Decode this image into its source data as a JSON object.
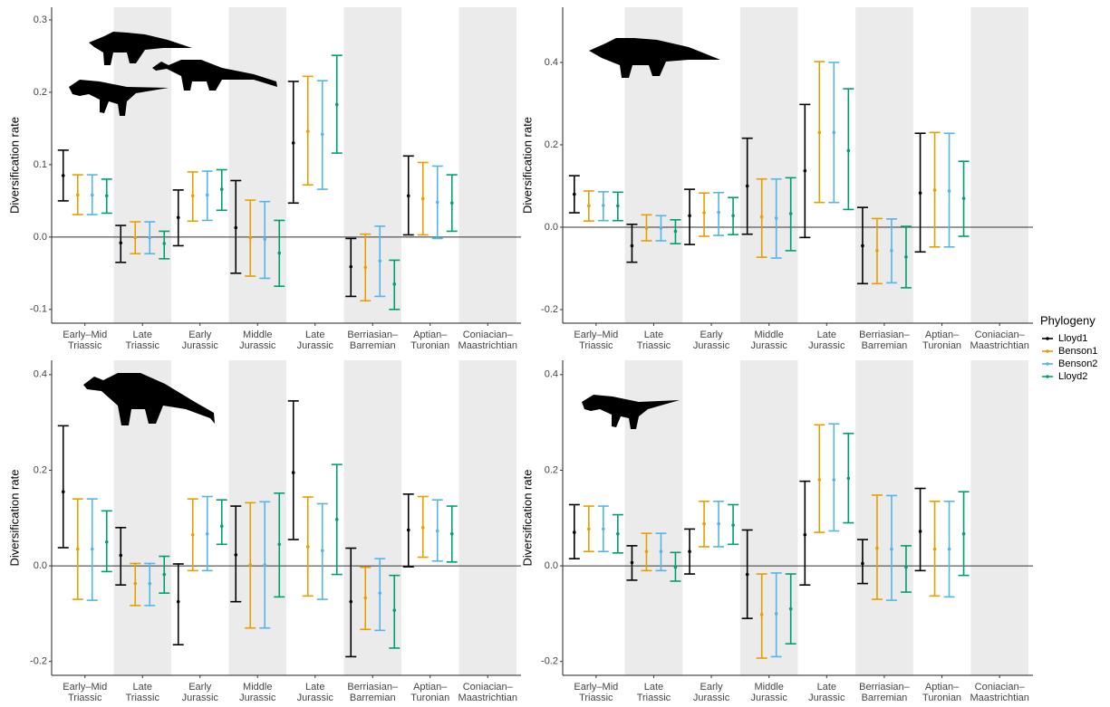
{
  "chart_data": [
    {
      "type": "errorbar",
      "y_label": "Diversification rate",
      "categories": [
        "Early–Mid Triassic",
        "Late Triassic",
        "Early Jurassic",
        "Middle Jurassic",
        "Late Jurassic",
        "Berriasian– Barremian",
        "Aptian– Turonian",
        "Coniacian– Maastrichtian"
      ],
      "ylim": [
        -0.119,
        0.3175
      ],
      "yticks": [
        -0.1,
        {
          "value": 0,
          "label": "0.0"
        },
        0.1,
        0.2,
        0.3
      ],
      "hline": 0,
      "legend_title": "Phylogeny",
      "series": [
        {
          "name": "Lloyd1",
          "color": "#000000",
          "values": [
            0.085,
            -0.008,
            0.027,
            0.013,
            0.13,
            -0.041,
            0.057,
            null
          ],
          "lower": [
            0.05,
            -0.035,
            -0.012,
            -0.05,
            0.047,
            -0.082,
            0.003,
            null
          ],
          "upper": [
            0.12,
            0.016,
            0.065,
            0.078,
            0.215,
            -0.002,
            0.112,
            null
          ]
        },
        {
          "name": "Benson1",
          "color": "#E69F00",
          "values": [
            0.058,
            -0.001,
            0.057,
            -0.001,
            0.146,
            -0.042,
            0.053,
            null
          ],
          "lower": [
            0.031,
            -0.023,
            0.022,
            -0.054,
            0.072,
            -0.088,
            0.003,
            null
          ],
          "upper": [
            0.086,
            0.021,
            0.09,
            0.051,
            0.222,
            0.004,
            0.103,
            null
          ]
        },
        {
          "name": "Benson2",
          "color": "#56B4E9",
          "values": [
            0.058,
            -0.001,
            0.058,
            -0.003,
            0.142,
            -0.033,
            0.048,
            null
          ],
          "lower": [
            0.031,
            -0.023,
            0.023,
            -0.057,
            0.066,
            -0.082,
            -0.002,
            null
          ],
          "upper": [
            0.086,
            0.021,
            0.091,
            0.049,
            0.216,
            0.015,
            0.098,
            null
          ]
        },
        {
          "name": "Lloyd2",
          "color": "#009E73",
          "values": [
            0.057,
            -0.009,
            0.066,
            -0.022,
            0.183,
            -0.065,
            0.047,
            null
          ],
          "lower": [
            0.033,
            -0.03,
            0.037,
            -0.068,
            0.116,
            -0.1,
            0.008,
            null
          ],
          "upper": [
            0.08,
            0.008,
            0.093,
            0.023,
            0.251,
            -0.032,
            0.086,
            null
          ]
        }
      ]
    },
    {
      "type": "errorbar",
      "y_label": "Diversification rate",
      "categories": [
        "Early–Mid Triassic",
        "Late Triassic",
        "Early Jurassic",
        "Middle Jurassic",
        "Late Jurassic",
        "Berriasian– Barremian",
        "Aptian– Turonian",
        "Coniacian– Maastrichtian"
      ],
      "ylim": [
        -0.233,
        0.534
      ],
      "yticks": [
        -0.2,
        {
          "value": 0,
          "label": "0.0"
        },
        0.2,
        0.4
      ],
      "hline": 0,
      "series": [
        {
          "name": "Lloyd1",
          "color": "#000000",
          "values": [
            0.08,
            -0.045,
            0.028,
            0.1,
            0.137,
            -0.045,
            0.083,
            null
          ],
          "lower": [
            0.035,
            -0.085,
            -0.042,
            -0.017,
            -0.025,
            -0.137,
            -0.06,
            null
          ],
          "upper": [
            0.125,
            0.007,
            0.092,
            0.216,
            0.298,
            0.048,
            0.228,
            null
          ]
        },
        {
          "name": "Benson1",
          "color": "#E69F00",
          "values": [
            0.052,
            -0.002,
            0.035,
            0.025,
            0.23,
            -0.057,
            0.09,
            null
          ],
          "lower": [
            0.015,
            -0.033,
            -0.022,
            -0.073,
            0.06,
            -0.137,
            -0.048,
            null
          ],
          "upper": [
            0.088,
            0.03,
            0.083,
            0.117,
            0.402,
            0.021,
            0.23,
            null
          ]
        },
        {
          "name": "Benson2",
          "color": "#56B4E9",
          "values": [
            0.053,
            -0.002,
            0.036,
            0.022,
            0.23,
            -0.057,
            0.088,
            null
          ],
          "lower": [
            0.016,
            -0.033,
            -0.02,
            -0.075,
            0.06,
            -0.135,
            -0.048,
            null
          ],
          "upper": [
            0.086,
            0.028,
            0.084,
            0.117,
            0.4,
            0.02,
            0.228,
            null
          ]
        },
        {
          "name": "Lloyd2",
          "color": "#009E73",
          "values": [
            0.052,
            -0.01,
            0.028,
            0.033,
            0.186,
            -0.072,
            0.07,
            null
          ],
          "lower": [
            0.016,
            -0.04,
            -0.018,
            -0.057,
            0.043,
            -0.147,
            -0.022,
            null
          ],
          "upper": [
            0.085,
            0.018,
            0.072,
            0.12,
            0.336,
            0.002,
            0.16,
            null
          ]
        }
      ]
    },
    {
      "type": "errorbar",
      "y_label": "Diversification rate",
      "categories": [
        "Early–Mid Triassic",
        "Late Triassic",
        "Early Jurassic",
        "Middle Jurassic",
        "Late Jurassic",
        "Berriasian– Barremian",
        "Aptian– Turonian",
        "Coniacian– Maastrichtian"
      ],
      "ylim": [
        -0.229,
        0.43
      ],
      "yticks": [
        -0.2,
        {
          "value": 0,
          "label": "0.0"
        },
        0.2,
        0.4
      ],
      "hline": 0,
      "series": [
        {
          "name": "Lloyd1",
          "color": "#000000",
          "values": [
            0.155,
            0.022,
            -0.075,
            0.023,
            0.195,
            -0.075,
            0.075,
            null
          ],
          "lower": [
            0.038,
            -0.04,
            -0.165,
            -0.075,
            0.055,
            -0.19,
            -0.002,
            null
          ],
          "upper": [
            0.293,
            0.08,
            0.004,
            0.125,
            0.345,
            0.037,
            0.15,
            null
          ]
        },
        {
          "name": "Benson1",
          "color": "#E69F00",
          "values": [
            0.035,
            -0.037,
            0.065,
            0.002,
            0.04,
            -0.067,
            0.08,
            null
          ],
          "lower": [
            -0.07,
            -0.083,
            -0.01,
            -0.13,
            -0.063,
            -0.133,
            0.018,
            null
          ],
          "upper": [
            0.14,
            0.005,
            0.14,
            0.132,
            0.144,
            -0.003,
            0.145,
            null
          ]
        },
        {
          "name": "Benson2",
          "color": "#56B4E9",
          "values": [
            0.035,
            -0.037,
            0.067,
            0.002,
            0.032,
            -0.057,
            0.073,
            null
          ],
          "lower": [
            -0.072,
            -0.083,
            -0.01,
            -0.13,
            -0.07,
            -0.135,
            0.01,
            null
          ],
          "upper": [
            0.14,
            0.005,
            0.145,
            0.134,
            0.13,
            0.015,
            0.138,
            null
          ]
        },
        {
          "name": "Lloyd2",
          "color": "#009E73",
          "values": [
            0.05,
            -0.018,
            0.083,
            0.045,
            0.097,
            -0.093,
            0.067,
            null
          ],
          "lower": [
            -0.012,
            -0.057,
            0.045,
            -0.065,
            -0.018,
            -0.172,
            0.008,
            null
          ],
          "upper": [
            0.115,
            0.02,
            0.138,
            0.152,
            0.212,
            -0.02,
            0.125,
            null
          ]
        }
      ]
    },
    {
      "type": "errorbar",
      "y_label": "Diversification rate",
      "categories": [
        "Early–Mid Triassic",
        "Late Triassic",
        "Early Jurassic",
        "Middle Jurassic",
        "Late Jurassic",
        "Berriasian– Barremian",
        "Aptian– Turonian",
        "Coniacian– Maastrichtian"
      ],
      "ylim": [
        -0.229,
        0.43
      ],
      "yticks": [
        -0.2,
        {
          "value": 0,
          "label": "0.0"
        },
        0.2,
        0.4
      ],
      "hline": 0,
      "series": [
        {
          "name": "Lloyd1",
          "color": "#000000",
          "values": [
            0.07,
            0.007,
            0.03,
            -0.018,
            0.065,
            0.005,
            0.072,
            null
          ],
          "lower": [
            0.015,
            -0.03,
            -0.017,
            -0.11,
            -0.04,
            -0.037,
            -0.01,
            null
          ],
          "upper": [
            0.128,
            0.042,
            0.077,
            0.075,
            0.177,
            0.055,
            0.162,
            null
          ]
        },
        {
          "name": "Benson1",
          "color": "#E69F00",
          "values": [
            0.077,
            0.03,
            0.088,
            -0.102,
            0.18,
            0.037,
            0.035,
            null
          ],
          "lower": [
            0.03,
            -0.01,
            0.04,
            -0.193,
            0.07,
            -0.07,
            -0.063,
            null
          ],
          "upper": [
            0.125,
            0.068,
            0.135,
            -0.017,
            0.295,
            0.148,
            0.135,
            null
          ]
        },
        {
          "name": "Benson2",
          "color": "#56B4E9",
          "values": [
            0.077,
            0.03,
            0.088,
            -0.1,
            0.18,
            0.035,
            0.035,
            null
          ],
          "lower": [
            0.03,
            -0.01,
            0.04,
            -0.19,
            0.073,
            -0.072,
            -0.065,
            null
          ],
          "upper": [
            0.125,
            0.068,
            0.135,
            -0.015,
            0.297,
            0.147,
            0.135,
            null
          ]
        },
        {
          "name": "Lloyd2",
          "color": "#009E73",
          "values": [
            0.067,
            -0.003,
            0.085,
            -0.09,
            0.183,
            -0.003,
            0.067,
            null
          ],
          "lower": [
            0.027,
            -0.032,
            0.045,
            -0.163,
            0.09,
            -0.055,
            -0.02,
            null
          ],
          "upper": [
            0.107,
            0.028,
            0.128,
            -0.017,
            0.277,
            0.042,
            0.155,
            null
          ]
        }
      ]
    }
  ]
}
